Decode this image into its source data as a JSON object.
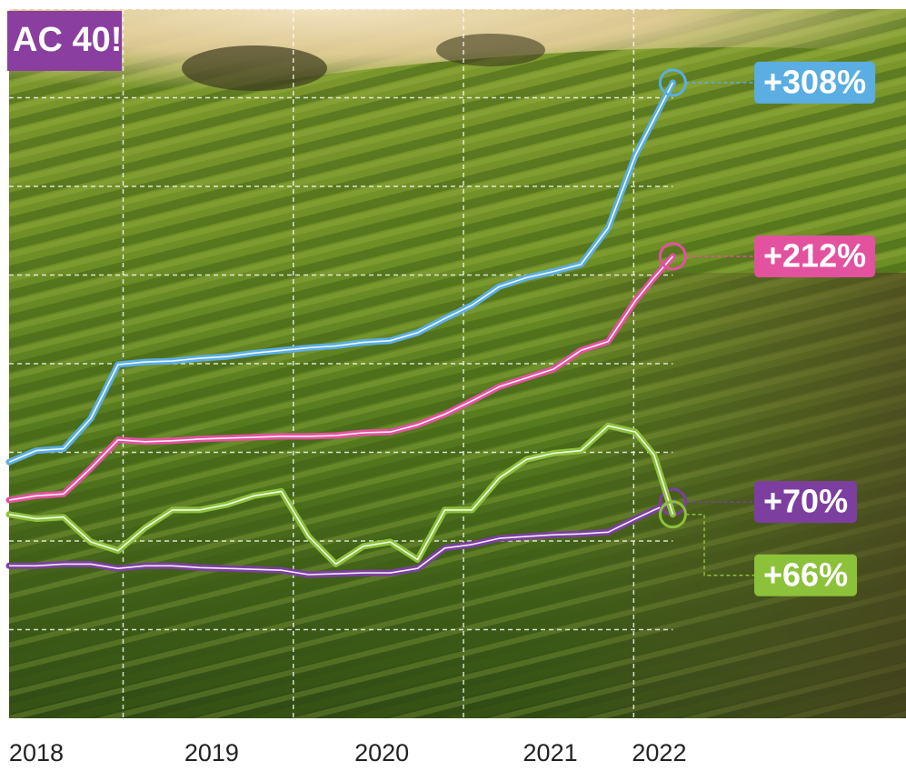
{
  "chart_data": {
    "type": "line",
    "title": "AC 40!",
    "x": [
      2018.33,
      2018.49,
      2018.65,
      2018.81,
      2018.97,
      2019.13,
      2019.29,
      2019.45,
      2019.61,
      2019.77,
      2019.93,
      2020.09,
      2020.25,
      2020.41,
      2020.57,
      2020.73,
      2020.89,
      2021.05,
      2021.21,
      2021.37,
      2021.53,
      2021.69,
      2021.85,
      2022.01,
      2022.12,
      2022.23
    ],
    "xlim": [
      2018.33,
      2023.6
    ],
    "xticks": [
      {
        "value": 2018.49,
        "label": "2018"
      },
      {
        "value": 2019.52,
        "label": "2019"
      },
      {
        "value": 2020.52,
        "label": "2020"
      },
      {
        "value": 2021.51,
        "label": "2021"
      },
      {
        "value": 2022.15,
        "label": "2022"
      }
    ],
    "xgrid": [
      2019,
      2020,
      2021,
      2022
    ],
    "ylim": [
      -1,
      7
    ],
    "yticks": [
      0,
      1,
      2,
      3,
      4,
      5,
      6,
      7
    ],
    "grid": true,
    "series": [
      {
        "color": "#5aaee2",
        "end_label": "+308%",
        "values": [
          1.89,
          2.02,
          2.04,
          2.38,
          2.99,
          3.02,
          3.03,
          3.06,
          3.08,
          3.12,
          3.15,
          3.18,
          3.2,
          3.24,
          3.26,
          3.35,
          3.51,
          3.66,
          3.87,
          3.97,
          4.04,
          4.12,
          4.53,
          5.35,
          5.76,
          6.17
        ]
      },
      {
        "color": "#e2529e",
        "end_label": "+212%",
        "values": [
          1.46,
          1.51,
          1.53,
          1.82,
          2.14,
          2.12,
          2.13,
          2.15,
          2.16,
          2.17,
          2.18,
          2.18,
          2.19,
          2.22,
          2.23,
          2.31,
          2.43,
          2.58,
          2.74,
          2.84,
          2.94,
          3.15,
          3.25,
          3.71,
          3.97,
          4.21
        ]
      },
      {
        "color": "#7c3fa0",
        "end_label": "+70%",
        "values": [
          0.72,
          0.72,
          0.74,
          0.74,
          0.69,
          0.72,
          0.72,
          0.7,
          0.69,
          0.68,
          0.67,
          0.62,
          0.63,
          0.64,
          0.64,
          0.69,
          0.92,
          0.96,
          1.03,
          1.05,
          1.07,
          1.08,
          1.1,
          1.25,
          1.35,
          1.44
        ]
      },
      {
        "color": "#8cc13a",
        "end_label": "+66%",
        "values": [
          1.3,
          1.25,
          1.27,
          0.99,
          0.89,
          1.15,
          1.35,
          1.35,
          1.41,
          1.51,
          1.56,
          1.05,
          0.74,
          0.94,
          0.99,
          0.79,
          1.35,
          1.35,
          1.71,
          1.92,
          1.99,
          2.02,
          2.3,
          2.23,
          1.97,
          1.3
        ]
      }
    ]
  }
}
